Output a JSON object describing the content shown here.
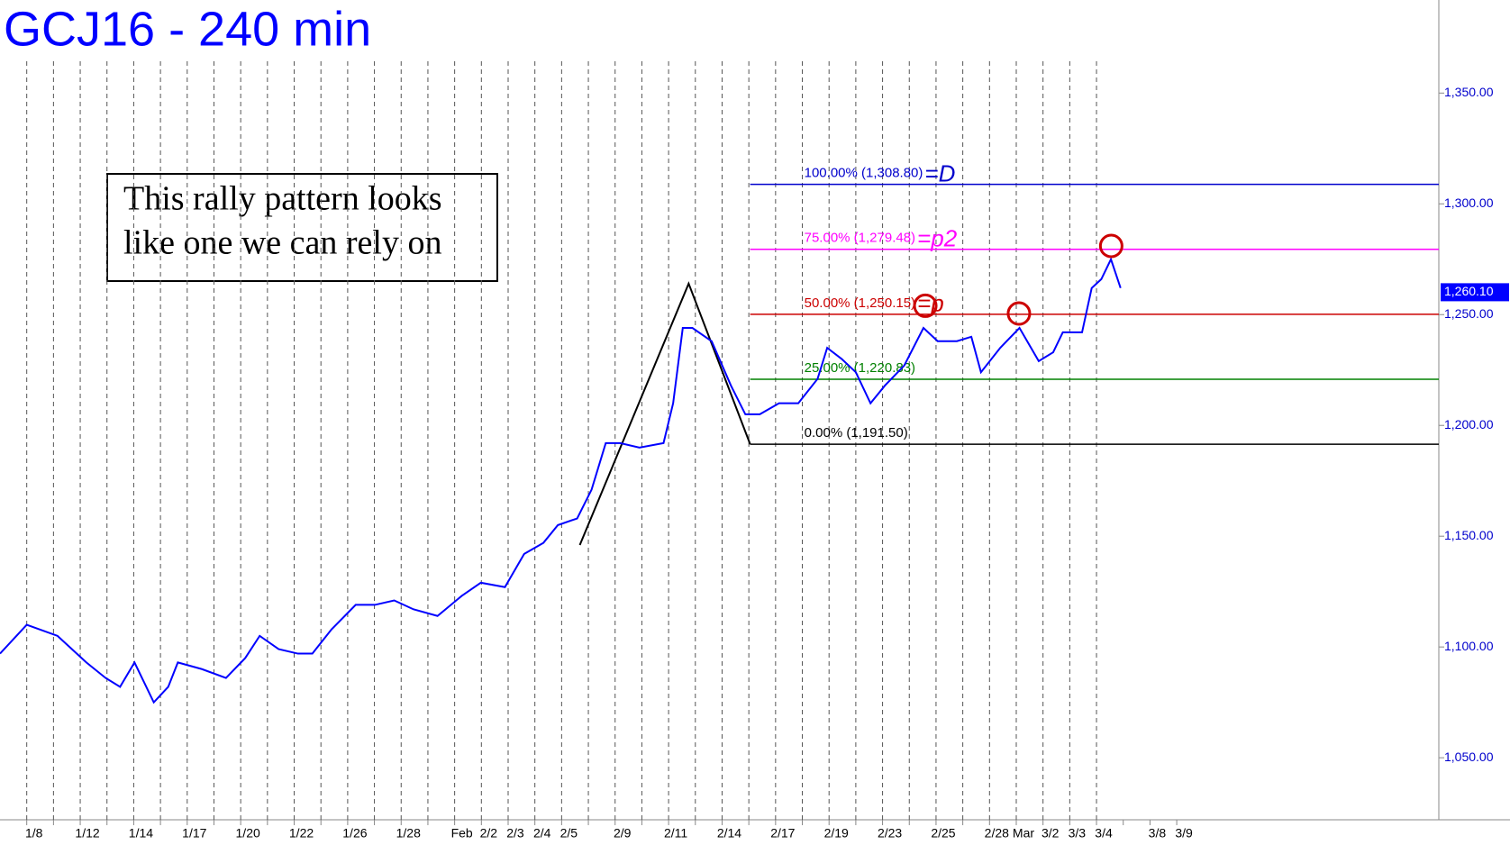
{
  "chart_data": {
    "type": "line",
    "title": "GCJ16 - 240 min",
    "annotation": [
      "This rally pattern looks",
      "like one we can rely on"
    ],
    "categories": [
      "1/8",
      null,
      "1/12",
      null,
      "1/14",
      null,
      "1/17",
      null,
      "1/20",
      null,
      "1/22",
      null,
      "1/26",
      null,
      "1/28",
      null,
      "Feb",
      "2/2",
      "2/3",
      "2/4",
      "2/5",
      null,
      "2/9",
      null,
      "2/11",
      null,
      "2/14",
      null,
      "2/17",
      null,
      "2/19",
      null,
      "2/23",
      null,
      "2/25",
      null,
      "2/28",
      "Mar",
      "3/2",
      "3/3",
      "3/4",
      null,
      "3/8",
      "3/9"
    ],
    "xlim": [
      -1,
      52.8
    ],
    "ylim": [
      1022,
      1392
    ],
    "yticks": [
      {
        "value": 1050,
        "label": "1,050.00"
      },
      {
        "value": 1100,
        "label": "1,100.00"
      },
      {
        "value": 1150,
        "label": "1,150.00"
      },
      {
        "value": 1200,
        "label": "1,200.00"
      },
      {
        "value": 1250,
        "label": "1,250.00"
      },
      {
        "value": 1300,
        "label": "1,300.00"
      },
      {
        "value": 1350,
        "label": "1,350.00"
      }
    ],
    "series": [
      {
        "name": "GCJ16",
        "color": "#0000ff",
        "x": [
          -1,
          0,
          1.15,
          2.23,
          2.95,
          3.49,
          4.03,
          4.75,
          5.29,
          5.65,
          6.55,
          7.45,
          8.17,
          8.71,
          9.42,
          10.14,
          10.68,
          11.4,
          12.3,
          13.02,
          13.74,
          14.46,
          15.36,
          16.26,
          16.98,
          17.88,
          18.6,
          19.32,
          19.86,
          20.58,
          21.12,
          21.65,
          22.19,
          22.91,
          23.81,
          24.17,
          24.53,
          24.89,
          25.61,
          26.33,
          26.87,
          27.41,
          28.13,
          28.85,
          29.57,
          29.93,
          30.47,
          31.0,
          31.55,
          32.09,
          32.81,
          33.53,
          34.06,
          34.78,
          35.32,
          35.68,
          36.4,
          37.12,
          37.84,
          38.38,
          38.74,
          39.46,
          39.82,
          40.18,
          40.54,
          40.9
        ],
        "values": [
          1097,
          1110,
          1105,
          1093,
          1086,
          1082,
          1093,
          1075,
          1082,
          1093,
          1090,
          1086,
          1095,
          1105,
          1099,
          1097,
          1097,
          1108,
          1119,
          1119,
          1121,
          1117,
          1114,
          1123,
          1129,
          1127,
          1142,
          1147,
          1155,
          1158,
          1171,
          1192,
          1192,
          1190,
          1192,
          1210,
          1244,
          1244,
          1238,
          1218,
          1205,
          1205,
          1210,
          1210,
          1221,
          1235,
          1230,
          1224,
          1210,
          1218,
          1227,
          1244,
          1238,
          1238,
          1240,
          1224,
          1235,
          1244,
          1229,
          1233,
          1242,
          1242,
          1262,
          1266,
          1275,
          1262
        ]
      }
    ],
    "last_price": {
      "value": 1260.1,
      "label": "1,260.10"
    },
    "fib_start": 27.05,
    "levels": [
      {
        "value": 1308.8,
        "label": "100.00% (1,308.80)",
        "tag": "=D",
        "color": "#0000cc"
      },
      {
        "value": 1279.48,
        "label": "75.00% (1,279.48)",
        "tag": "=p2",
        "color": "#ff00ff"
      },
      {
        "value": 1250.15,
        "label": "50.00% (1,250.15)",
        "tag": "=p",
        "color": "#cc0000"
      },
      {
        "value": 1220.83,
        "label": "25.00% (1,220.83)",
        "color": "#008000"
      },
      {
        "value": 1191.5,
        "label": "0.00% (1,191.50)",
        "color": "#000000"
      }
    ],
    "zigzag": {
      "x": [
        20.68,
        24.75,
        27.05
      ],
      "values": [
        1146,
        1264,
        1191.5
      ]
    },
    "circles": {
      "x": [
        33.6,
        37.1,
        40.55
      ],
      "values": [
        1254,
        1250.5,
        1281
      ]
    }
  }
}
